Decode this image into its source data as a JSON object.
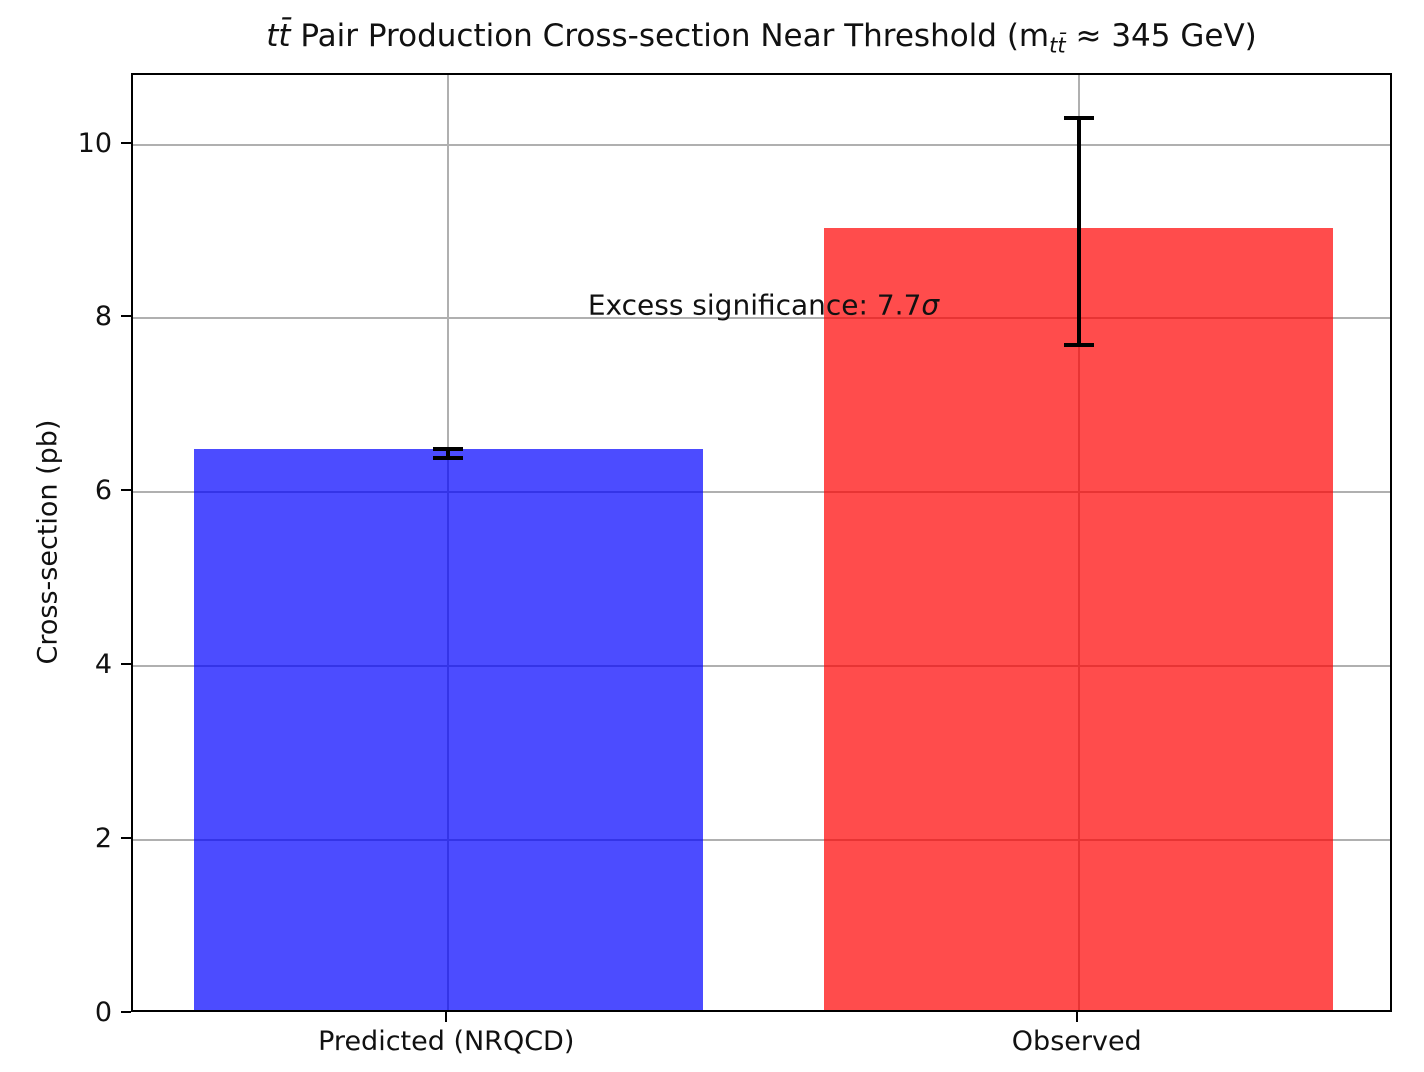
{
  "figure": {
    "title_parts": {
      "ttbar": "tt̄",
      "mid": " Pair Production Cross-section Near Threshold (m",
      "sub": "tt̄",
      "suffix": " ≈ 345 GeV)"
    }
  },
  "chart_data": {
    "type": "bar",
    "title": "tt̄ Pair Production Cross-section Near Threshold (m_tt̄ ≈ 345 GeV)",
    "xlabel": "",
    "ylabel": "Cross-section (pb)",
    "categories": [
      "Predicted (NRQCD)",
      "Observed"
    ],
    "values": [
      6.45,
      9.0
    ],
    "errors": [
      0.05,
      1.3
    ],
    "bar_colors": [
      "#0000FF",
      "#FF0000"
    ],
    "bar_alpha": 0.7,
    "yticks": [
      0,
      2,
      4,
      6,
      8,
      10
    ],
    "ylim": [
      0,
      10.8
    ],
    "grid": true,
    "grid_color": "#b0b0b0",
    "spine_color": "#000000",
    "errorbar": {
      "color": "#000000",
      "linewidth": 4,
      "capsize": 15,
      "capthick": 4
    },
    "legend": null,
    "annotation": {
      "text": "Excess significance: 7.7",
      "sigma": "σ",
      "x": 0.5,
      "y": 8.15
    }
  }
}
